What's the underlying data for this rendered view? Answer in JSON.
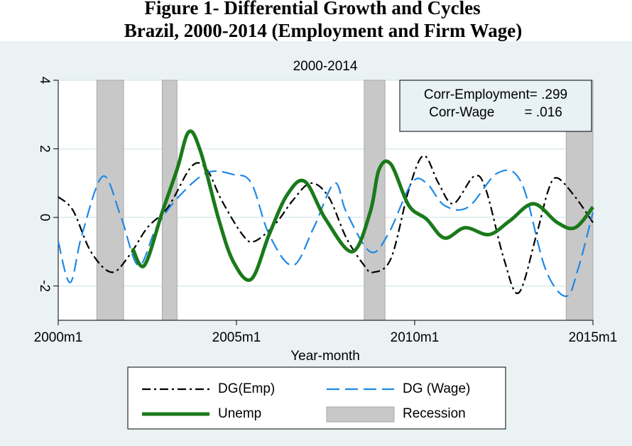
{
  "chart_data": {
    "type": "line",
    "title": "Figure 1- Differential Growth and Cycles",
    "subtitle": "Brazil, 2000-2014 (Employment and Firm Wage)",
    "plot_title": "2000-2014",
    "x_label": "Year-month",
    "annotations": [
      "Corr-Employment= .299",
      "Corr-Wage        = .016"
    ],
    "xlim": [
      480,
      660
    ],
    "xticks": [
      {
        "value": 480,
        "label": "2000m1"
      },
      {
        "value": 540,
        "label": "2005m1"
      },
      {
        "value": 600,
        "label": "2010m1"
      },
      {
        "value": 660,
        "label": "2015m1"
      }
    ],
    "ylim": [
      -3,
      4
    ],
    "yticks": [
      -2,
      0,
      2,
      4
    ],
    "grid": true,
    "recession": {
      "name": "Recession",
      "color": "#c8c8c8",
      "spans": [
        [
          493,
          502
        ],
        [
          515,
          520
        ],
        [
          583,
          590
        ],
        [
          651,
          660
        ]
      ]
    },
    "series": [
      {
        "name": "DG(Emp)",
        "color": "#000000",
        "style": "dashdot",
        "x": [
          480,
          485,
          491,
          498,
          504,
          510,
          517,
          525,
          530,
          535,
          542,
          546,
          553,
          559,
          565,
          571,
          577,
          583,
          586,
          592,
          598,
          603,
          608,
          613,
          620,
          624,
          630,
          635,
          641,
          645,
          648,
          654,
          660
        ],
        "values": [
          0.6,
          0.2,
          -1.0,
          -1.6,
          -1.1,
          -0.3,
          0.3,
          1.5,
          1.4,
          0.5,
          -0.5,
          -0.7,
          -0.2,
          0.5,
          1.0,
          0.6,
          -0.6,
          -1.4,
          -1.6,
          -1.2,
          0.8,
          1.8,
          1.0,
          0.4,
          1.2,
          0.8,
          -1.2,
          -2.2,
          -0.5,
          0.8,
          1.15,
          0.6,
          -0.15
        ]
      },
      {
        "name": "DG (Wage)",
        "color": "#1e88e5",
        "style": "dash",
        "x": [
          480,
          484,
          488,
          495,
          501,
          507,
          513,
          520,
          530,
          539,
          545,
          551,
          559,
          566,
          573,
          577,
          585,
          591,
          599,
          604,
          610,
          618,
          628,
          636,
          644,
          651,
          655,
          660
        ],
        "values": [
          -0.7,
          -1.9,
          -0.5,
          1.2,
          0.05,
          -1.4,
          -0.3,
          0.55,
          1.3,
          1.25,
          1.0,
          -0.5,
          -1.4,
          -0.3,
          1.0,
          0.15,
          -1.0,
          -0.5,
          1.0,
          1.0,
          0.35,
          0.3,
          1.3,
          1.0,
          -1.5,
          -2.3,
          -1.5,
          0.15
        ]
      },
      {
        "name": "Unemp",
        "color": "#1a7a1a",
        "style": "solid",
        "x": [
          505,
          509,
          515,
          520,
          524,
          528,
          534,
          539,
          545,
          551,
          557,
          563,
          570,
          579,
          585,
          588,
          592,
          598,
          604,
          610,
          617,
          625,
          632,
          640,
          648,
          654,
          660
        ],
        "values": [
          -0.9,
          -1.4,
          0.15,
          1.4,
          2.5,
          1.9,
          -0.05,
          -1.3,
          -1.8,
          -0.5,
          0.65,
          1.05,
          -0.05,
          -1.0,
          0.15,
          1.4,
          1.55,
          0.35,
          -0.05,
          -0.6,
          -0.3,
          -0.5,
          -0.1,
          0.4,
          -0.15,
          -0.3,
          0.3
        ]
      }
    ]
  }
}
